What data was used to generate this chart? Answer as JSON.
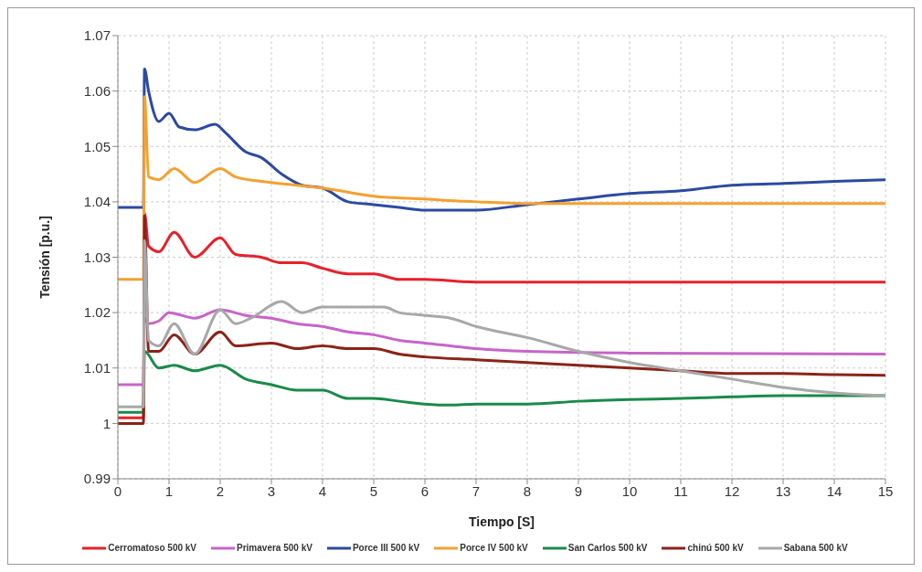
{
  "chart_data": {
    "type": "line",
    "xlabel": "Tiempo [S]",
    "ylabel": "Tensión [p.u.]",
    "xlim": [
      0,
      15
    ],
    "xticks": [
      0,
      1,
      2,
      3,
      4,
      5,
      6,
      7,
      8,
      9,
      10,
      11,
      12,
      13,
      14,
      15
    ],
    "ylim": [
      0.99,
      1.07
    ],
    "yticks": [
      0.99,
      1,
      1.01,
      1.02,
      1.03,
      1.04,
      1.05,
      1.06,
      1.07
    ],
    "grid": true,
    "legend": "bottom",
    "marker": "none",
    "line_style": "solid",
    "series": [
      {
        "name": "Cerromatoso 500 kV",
        "color": "#e8202a",
        "x": [
          0,
          0.5,
          0.52,
          0.6,
          0.8,
          1.1,
          1.5,
          2,
          2.3,
          2.8,
          3.2,
          3.6,
          4,
          4.5,
          5,
          5.5,
          6,
          7,
          8,
          15
        ],
        "values": [
          1.001,
          1.001,
          1.038,
          1.032,
          1.031,
          1.0345,
          1.03,
          1.0335,
          1.0305,
          1.03,
          1.029,
          1.029,
          1.028,
          1.027,
          1.027,
          1.026,
          1.026,
          1.0255,
          1.0255,
          1.0255
        ]
      },
      {
        "name": "Primavera 500 kV",
        "color": "#c864c8",
        "x": [
          0,
          0.5,
          0.52,
          0.6,
          0.8,
          1,
          1.5,
          2,
          2.5,
          3,
          3.5,
          4,
          4.5,
          5,
          5.5,
          6,
          7,
          8,
          10,
          15
        ],
        "values": [
          1.007,
          1.007,
          1.019,
          1.018,
          1.0185,
          1.02,
          1.019,
          1.0205,
          1.0195,
          1.019,
          1.018,
          1.0175,
          1.0165,
          1.016,
          1.015,
          1.0145,
          1.0135,
          1.013,
          1.0127,
          1.0125
        ]
      },
      {
        "name": "Porce III 500 kV",
        "color": "#2b4aa0",
        "x": [
          0,
          0.5,
          0.52,
          0.6,
          0.8,
          1,
          1.2,
          1.5,
          1.9,
          2.1,
          2.5,
          2.8,
          3.2,
          3.6,
          4,
          4.5,
          5,
          5.5,
          6,
          6.5,
          7,
          8,
          9,
          10,
          11,
          12,
          13,
          14,
          15
        ],
        "values": [
          1.039,
          1.039,
          1.064,
          1.06,
          1.0545,
          1.056,
          1.0535,
          1.053,
          1.054,
          1.0525,
          1.049,
          1.048,
          1.045,
          1.043,
          1.0425,
          1.04,
          1.0395,
          1.039,
          1.0385,
          1.0385,
          1.0385,
          1.0395,
          1.0405,
          1.0415,
          1.042,
          1.043,
          1.0433,
          1.0437,
          1.044
        ]
      },
      {
        "name": "Porce IV 500 kV",
        "color": "#f5a030",
        "x": [
          0,
          0.5,
          0.52,
          0.6,
          0.8,
          1.1,
          1.5,
          2,
          2.3,
          3,
          3.5,
          4,
          5,
          6,
          7,
          8,
          10,
          15
        ],
        "values": [
          1.026,
          1.026,
          1.059,
          1.0445,
          1.044,
          1.046,
          1.0435,
          1.046,
          1.0445,
          1.0435,
          1.043,
          1.0425,
          1.041,
          1.0405,
          1.04,
          1.0397,
          1.0397,
          1.0397
        ]
      },
      {
        "name": "San Carlos 500 kV",
        "color": "#1a8a4a",
        "x": [
          0,
          0.5,
          0.52,
          0.8,
          1.1,
          1.5,
          2,
          2.5,
          3,
          3.5,
          4,
          4.5,
          5,
          5.5,
          6,
          6.5,
          7,
          8,
          9,
          10,
          11,
          12,
          13,
          15
        ],
        "values": [
          1.002,
          1.002,
          1.013,
          1.01,
          1.0105,
          1.0095,
          1.0105,
          1.008,
          1.007,
          1.006,
          1.006,
          1.0045,
          1.0045,
          1.004,
          1.0035,
          1.0033,
          1.0035,
          1.0035,
          1.004,
          1.0043,
          1.0045,
          1.0048,
          1.005,
          1.005
        ]
      },
      {
        "name": "chinú 500 kV",
        "color": "#8b2318",
        "x": [
          0,
          0.5,
          0.52,
          0.6,
          0.8,
          1.1,
          1.5,
          2,
          2.3,
          3,
          3.5,
          4,
          4.5,
          5,
          5.5,
          6,
          7,
          8,
          9,
          10,
          11,
          12,
          13,
          14,
          15
        ],
        "values": [
          1,
          1,
          1.0375,
          1.013,
          1.013,
          1.016,
          1.0125,
          1.0165,
          1.014,
          1.0145,
          1.0135,
          1.014,
          1.0135,
          1.0135,
          1.0125,
          1.012,
          1.0115,
          1.011,
          1.0105,
          1.01,
          1.0095,
          1.009,
          1.009,
          1.0088,
          1.0087
        ]
      },
      {
        "name": "Sabana 500 kV",
        "color": "#a8a8a8",
        "x": [
          0,
          0.5,
          0.52,
          0.6,
          0.8,
          1.1,
          1.5,
          2,
          2.3,
          2.6,
          3.2,
          3.6,
          4,
          4.5,
          5.2,
          5.5,
          6,
          6.5,
          7,
          8,
          9,
          10,
          11,
          12,
          13,
          14,
          15
        ],
        "values": [
          1.003,
          1.003,
          1.033,
          1.015,
          1.014,
          1.018,
          1.0125,
          1.0205,
          1.018,
          1.019,
          1.022,
          1.02,
          1.021,
          1.021,
          1.021,
          1.02,
          1.0195,
          1.019,
          1.0175,
          1.0155,
          1.013,
          1.011,
          1.0095,
          1.008,
          1.0065,
          1.0055,
          1.005
        ]
      }
    ]
  }
}
